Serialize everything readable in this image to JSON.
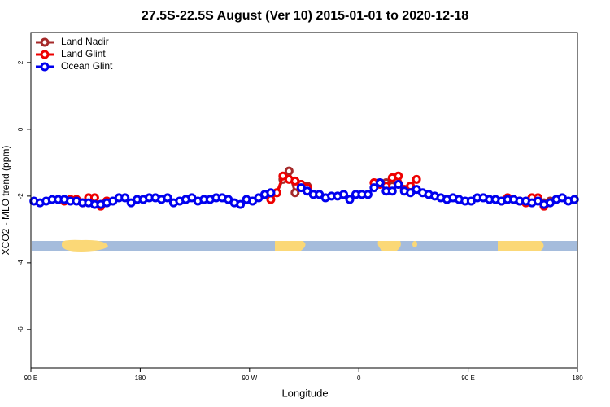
{
  "chart_data": {
    "type": "line",
    "title": "27.5S-22.5S August (Ver 10)   2015-01-01 to 2020-12-18",
    "x_label": "Longitude",
    "y_label": "XCO2 - MLO trend (ppm)",
    "xlim": [
      90,
      540
    ],
    "xticks": [
      {
        "value": 90,
        "label": "90 E"
      },
      180,
      {
        "value": 270,
        "label": "90 W"
      },
      {
        "value": 360,
        "label": "0"
      },
      {
        "value": 450,
        "label": "90 E"
      },
      {
        "value": 540,
        "label": "180"
      }
    ],
    "ylim": [
      -7.15,
      2.9
    ],
    "yticks": [
      -6,
      -4,
      -2,
      0,
      2
    ],
    "legend": "top-left",
    "series": [
      {
        "name": "Land Nadir",
        "color": "#a52a2a",
        "x": [
          142.5,
          147.5,
          152.5,
          null,
          292.5,
          297.5,
          302.5,
          307.5,
          312.5,
          317.5,
          null,
          377.5,
          382.5,
          387.5,
          null,
          512.5,
          517.5
        ],
        "values": [
          -2.2,
          -2.25,
          -2.15,
          null,
          -1.9,
          -1.5,
          -1.25,
          -1.9,
          -1.65,
          -1.7,
          null,
          -1.6,
          -1.6,
          -1.7,
          null,
          -2.2,
          -2.15
        ]
      },
      {
        "name": "Land Glint",
        "color": "#ee0000",
        "x": [
          117.5,
          122.5,
          127.5,
          132.5,
          137.5,
          142.5,
          147.5,
          152.5,
          null,
          287.5,
          292.5,
          297.5,
          302.5,
          307.5,
          312.5,
          317.5,
          null,
          372.5,
          377.5,
          382.5,
          387.5,
          392.5,
          397.5,
          402.5,
          407.5,
          null,
          477.5,
          482.5,
          487.5,
          492.5,
          497.5,
          502.5,
          507.5,
          512.5
        ],
        "values": [
          -2.15,
          -2.1,
          -2.1,
          -2.2,
          -2.05,
          -2.05,
          -2.3,
          -2.15,
          null,
          -2.1,
          -1.9,
          -1.4,
          -1.5,
          -1.55,
          -1.65,
          -1.75,
          null,
          -1.6,
          -1.65,
          -1.7,
          -1.45,
          -1.4,
          -1.8,
          -1.7,
          -1.5,
          null,
          -2.15,
          -2.05,
          -2.1,
          -2.15,
          -2.2,
          -2.05,
          -2.05,
          -2.3
        ]
      },
      {
        "name": "Ocean Glint",
        "color": "#0000ee",
        "x": [
          92.5,
          97.5,
          102.5,
          107.5,
          112.5,
          117.5,
          122.5,
          127.5,
          132.5,
          137.5,
          142.5,
          147.5,
          152.5,
          157.5,
          162.5,
          167.5,
          172.5,
          177.5,
          182.5,
          187.5,
          192.5,
          197.5,
          202.5,
          207.5,
          212.5,
          217.5,
          222.5,
          227.5,
          232.5,
          237.5,
          242.5,
          247.5,
          252.5,
          257.5,
          262.5,
          267.5,
          272.5,
          277.5,
          282.5,
          287.5,
          292.5,
          297.5,
          302.5,
          307.5,
          312.5,
          317.5,
          322.5,
          327.5,
          332.5,
          337.5,
          342.5,
          347.5,
          352.5,
          357.5,
          362.5,
          367.5,
          372.5,
          377.5,
          382.5,
          387.5,
          392.5,
          397.5,
          402.5,
          407.5,
          412.5,
          417.5,
          422.5,
          427.5,
          432.5,
          437.5,
          442.5,
          447.5,
          452.5,
          457.5,
          462.5,
          467.5,
          472.5,
          477.5,
          482.5,
          487.5,
          492.5,
          497.5,
          502.5,
          507.5,
          512.5,
          517.5,
          522.5,
          527.5,
          532.5,
          537.5
        ],
        "values": [
          -2.15,
          -2.2,
          -2.15,
          -2.1,
          -2.1,
          -2.1,
          -2.15,
          -2.15,
          -2.2,
          -2.2,
          -2.25,
          -2.25,
          -2.2,
          -2.15,
          -2.05,
          -2.05,
          -2.2,
          -2.1,
          -2.1,
          -2.05,
          -2.05,
          -2.1,
          -2.05,
          -2.2,
          -2.15,
          -2.1,
          -2.05,
          -2.15,
          -2.1,
          -2.1,
          -2.05,
          -2.05,
          -2.1,
          -2.2,
          -2.25,
          -2.1,
          -2.15,
          -2.05,
          -1.95,
          -1.9,
          null,
          null,
          null,
          null,
          -1.75,
          -1.85,
          -1.95,
          -1.95,
          -2.05,
          -2.0,
          -2.0,
          -1.95,
          -2.1,
          -1.95,
          -1.95,
          -1.95,
          -1.75,
          -1.6,
          -1.85,
          -1.85,
          -1.65,
          -1.85,
          -1.9,
          -1.8,
          -1.9,
          -1.95,
          -2.0,
          -2.05,
          -2.1,
          -2.05,
          -2.1,
          -2.15,
          -2.15,
          -2.05,
          -2.05,
          -2.1,
          -2.1,
          -2.15,
          -2.1,
          -2.1,
          -2.15,
          -2.15,
          -2.2,
          -2.15,
          -2.25,
          -2.2,
          -2.1,
          -2.05,
          -2.15,
          -2.1
        ]
      }
    ]
  }
}
